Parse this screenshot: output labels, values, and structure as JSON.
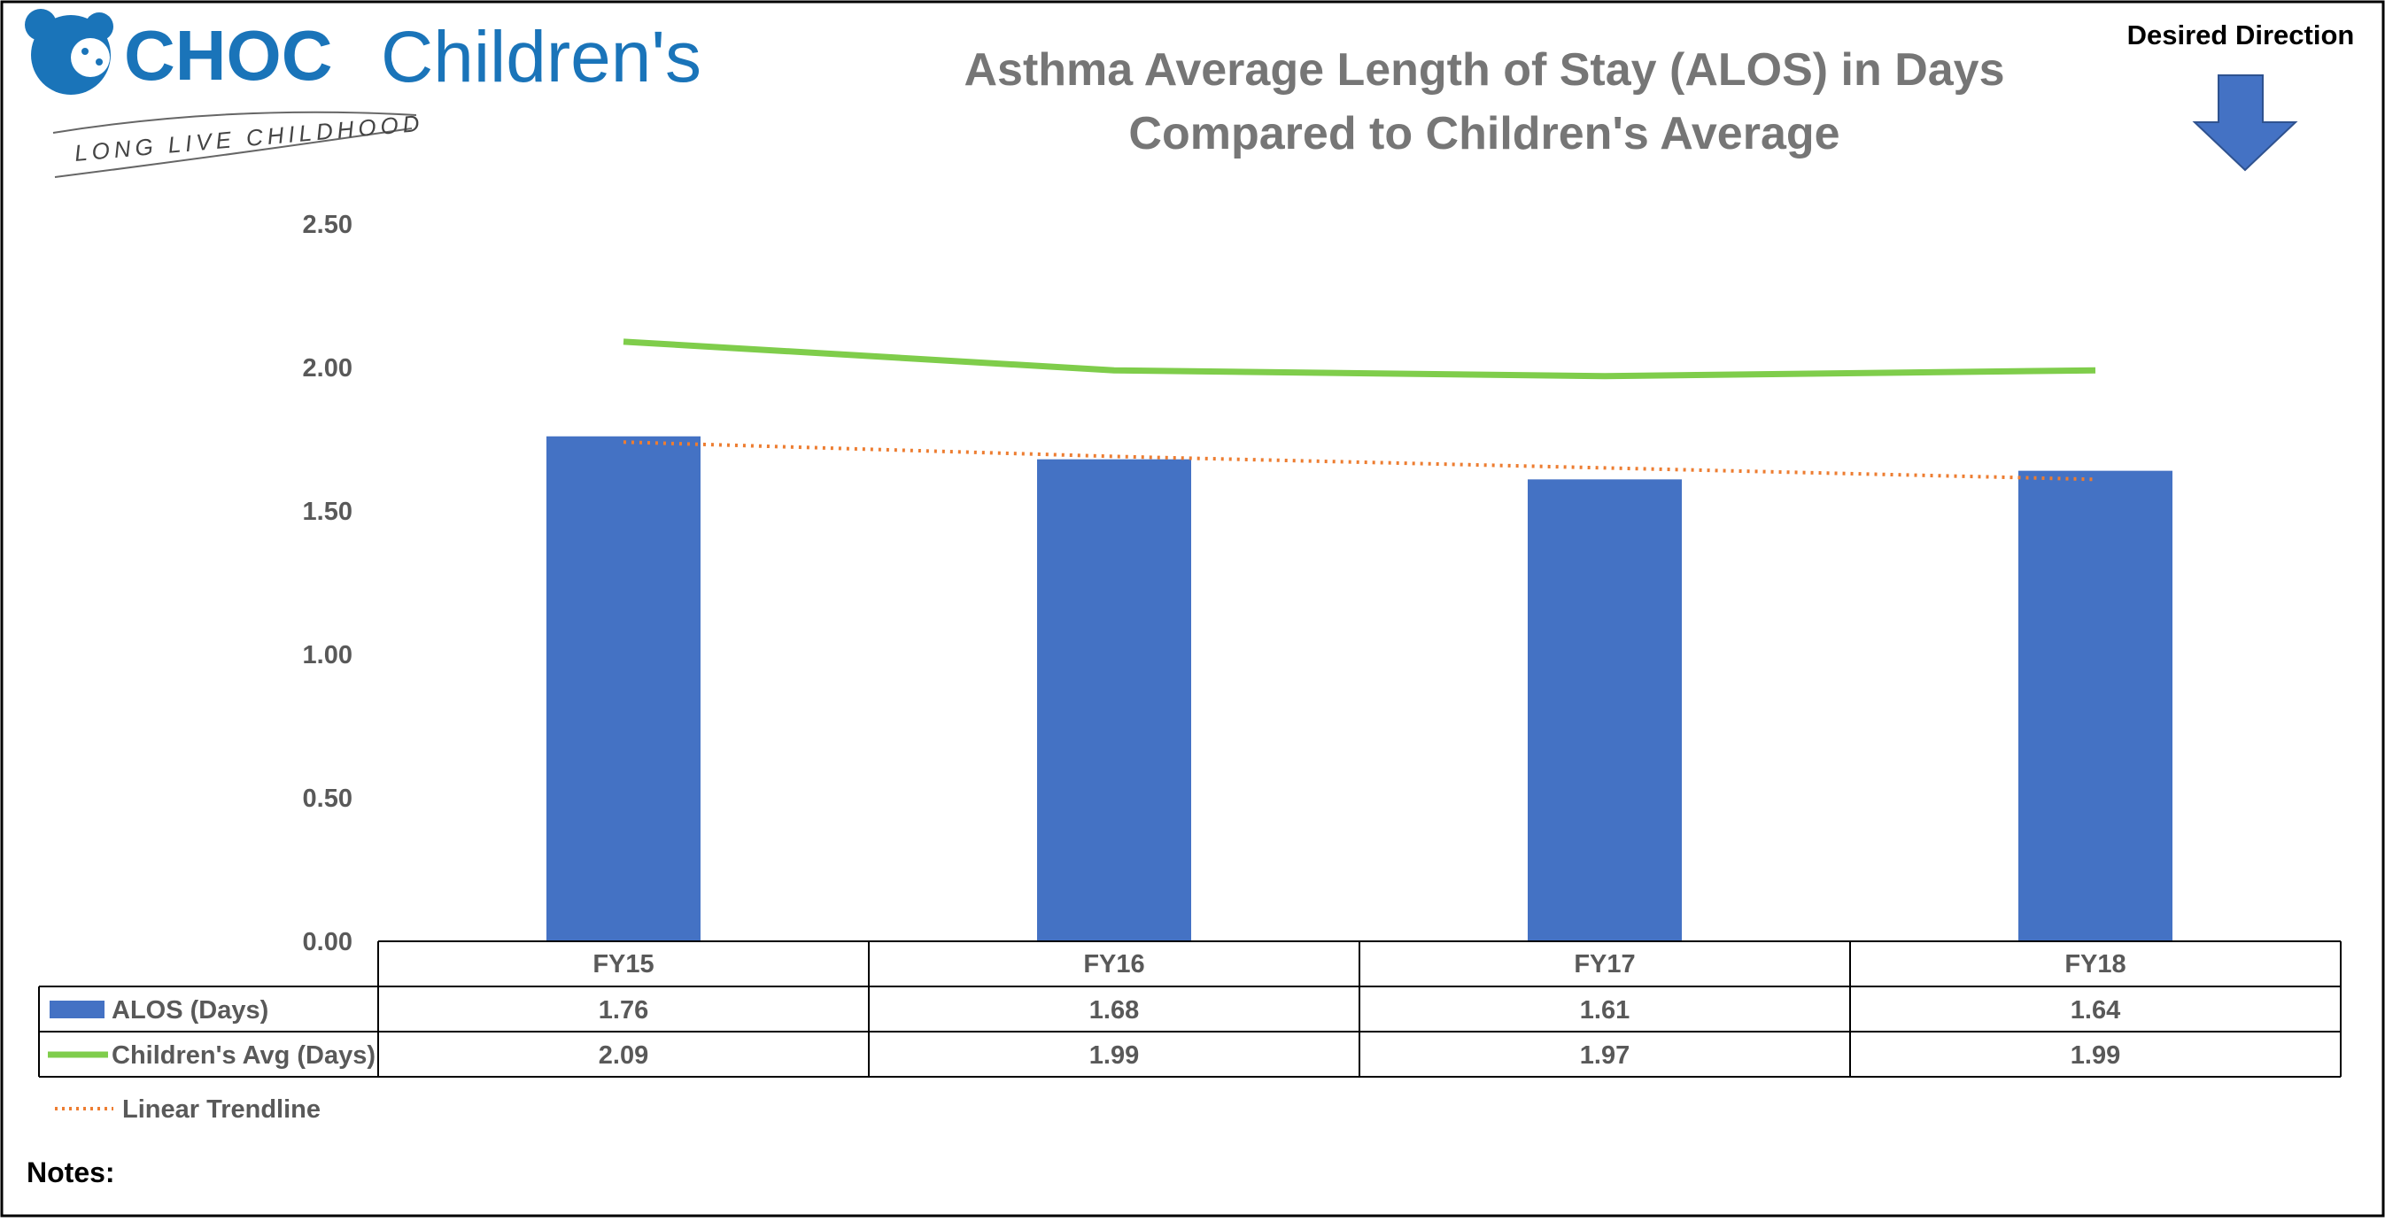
{
  "logo": {
    "brand_main": "CHOC",
    "brand_sub": "Children's",
    "tagline": "LONG LIVE CHILDHOOD",
    "icon": "bear-icon"
  },
  "desired_direction": {
    "label": "Desired Direction",
    "icon": "arrow-down-icon",
    "color": "#4472c4"
  },
  "notes_label": "Notes:",
  "trendline_label": "Linear Trendline",
  "chart_data": {
    "type": "bar",
    "title": [
      "Asthma Average Length of Stay (ALOS) in Days",
      "Compared to Children's Average"
    ],
    "categories": [
      "FY15",
      "FY16",
      "FY17",
      "FY18"
    ],
    "ylim": [
      0,
      2.5
    ],
    "yticks": [
      "0.00",
      "0.50",
      "1.00",
      "1.50",
      "2.00",
      "2.50"
    ],
    "grid": false,
    "legend": "data-table-below",
    "series": [
      {
        "name": "ALOS (Days)",
        "type": "bar",
        "color": "#4472c4",
        "values": [
          1.76,
          1.68,
          1.61,
          1.64
        ],
        "labels": [
          "1.76",
          "1.68",
          "1.61",
          "1.64"
        ]
      },
      {
        "name": "Children's Avg (Days)",
        "type": "line",
        "color": "#7fcd4b",
        "values": [
          2.09,
          1.99,
          1.97,
          1.99
        ],
        "labels": [
          "2.09",
          "1.99",
          "1.97",
          "1.99"
        ]
      }
    ],
    "trendline": {
      "name": "Linear Trendline",
      "style": "dotted",
      "color": "#ed7d31",
      "values": [
        1.74,
        1.69,
        1.65,
        1.61
      ]
    }
  }
}
